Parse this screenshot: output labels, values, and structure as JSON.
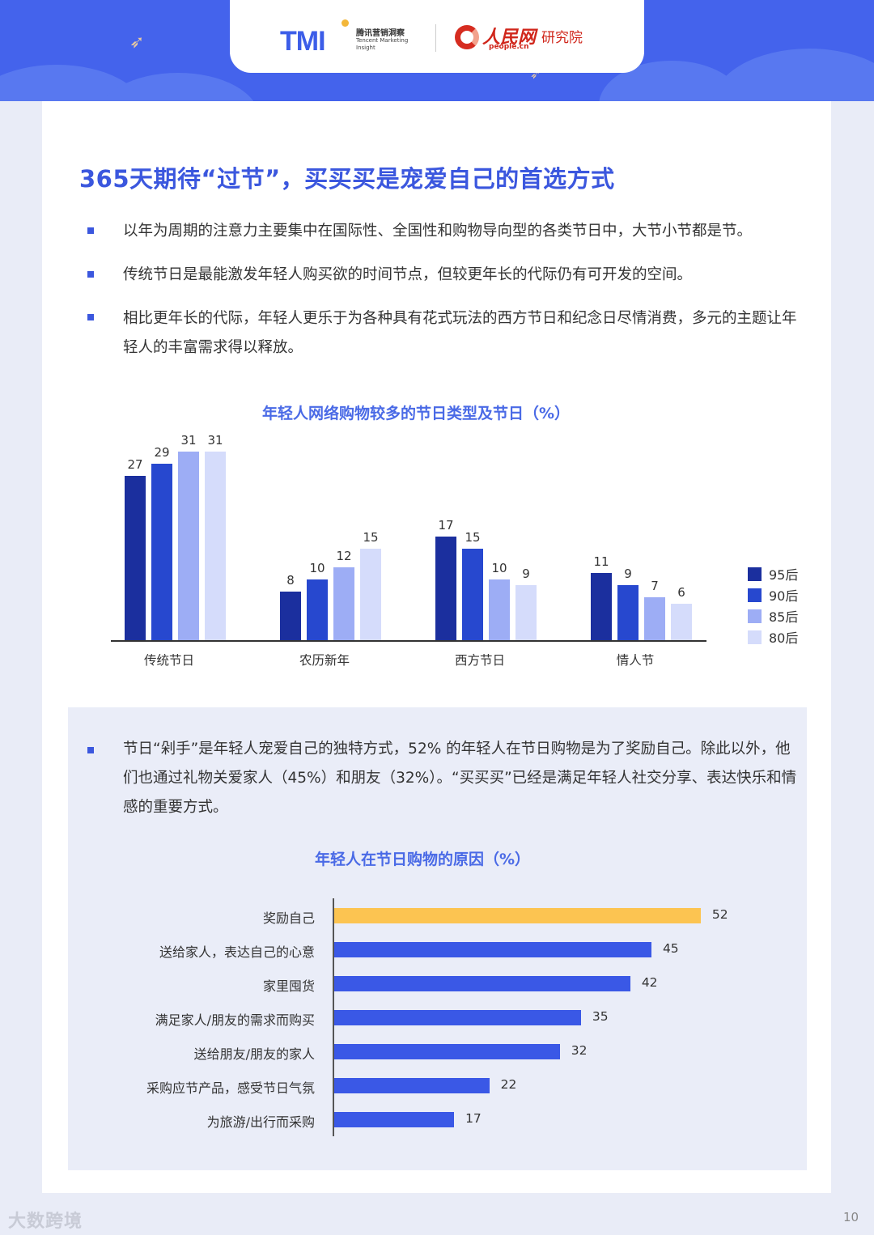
{
  "header": {
    "tmi_logo": "TMI",
    "tmi_name_cn": "腾讯营销洞察",
    "tmi_name_en": "Tencent Marketing Insight",
    "people_logo": "人民网",
    "people_url": "people.cn",
    "people_institute": "研究院"
  },
  "title": "365天期待“过节”，买买买是宠爱自己的首选方式",
  "bullets": [
    "以年为周期的注意力主要集中在国际性、全国性和购物导向型的各类节日中，大节小节都是节。",
    "传统节日是最能激发年轻人购买欲的时间节点，但较更年长的代际仍有可开发的空间。",
    "相比更年长的代际，年轻人更乐于为各种具有花式玩法的西方节日和纪念日尽情消费，多元的主题让年轻人的丰富需求得以释放。"
  ],
  "bullet2": "节日“剁手”是年轻人宠爱自己的独特方式，52% 的年轻人在节日购物是为了奖励自己。除此以外，他们也通过礼物关爱家人（45%）和朋友（32%）。“买买买”已经是满足年轻人社交分享、表达快乐和情感的重要方式。",
  "colors": {
    "accent": "#3b57de",
    "s95": "#1b2f9e",
    "s90": "#2748cf",
    "s85": "#9dadf5",
    "s80": "#d5dcfb",
    "highlight": "#fcc451",
    "hbar": "#3a58e6"
  },
  "chart_data": [
    {
      "type": "bar",
      "title": "年轻人网络购物较多的节日类型及节日（%）",
      "categories": [
        "传统节日",
        "农历新年",
        "西方节日",
        "情人节"
      ],
      "series": [
        {
          "name": "95后",
          "values": [
            27,
            8,
            17,
            11
          ]
        },
        {
          "name": "90后",
          "values": [
            29,
            10,
            15,
            9
          ]
        },
        {
          "name": "85后",
          "values": [
            31,
            12,
            10,
            7
          ]
        },
        {
          "name": "80后",
          "values": [
            31,
            15,
            9,
            6
          ]
        }
      ],
      "xlabel": "",
      "ylabel": "%",
      "legend_position": "right",
      "grid": false
    },
    {
      "type": "bar",
      "orientation": "horizontal",
      "title": "年轻人在节日购物的原因（%）",
      "categories": [
        "奖励自己",
        "送给家人，表达自己的心意",
        "家里囤货",
        "满足家人/朋友的需求而购买",
        "送给朋友/朋友的家人",
        "采购应节产品，感受节日气氛",
        "为旅游/出行而采购"
      ],
      "values": [
        52,
        45,
        42,
        35,
        32,
        22,
        17
      ],
      "highlight_index": 0,
      "grid": false
    }
  ],
  "footer": {
    "watermark": "大数跨境",
    "page_number": "10"
  }
}
